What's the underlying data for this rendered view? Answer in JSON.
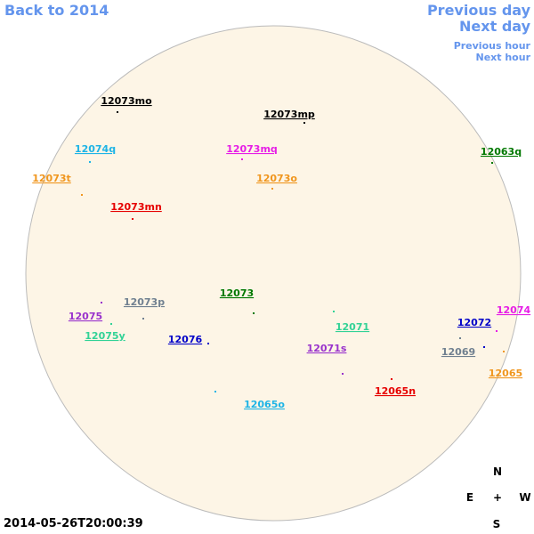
{
  "nav": {
    "back": "Back to 2014",
    "previous_day": "Previous day",
    "next_day": "Next day",
    "previous_hour": "Previous hour",
    "next_hour": "Next hour"
  },
  "regions": [
    {
      "label": "12073mo",
      "color": "#000000"
    },
    {
      "label": "12073mp",
      "color": "#000000"
    },
    {
      "label": "12074q",
      "color": "#1eb4e6"
    },
    {
      "label": "12073mq",
      "color": "#e61ee6"
    },
    {
      "label": "12063q",
      "color": "#007800"
    },
    {
      "label": "12073t",
      "color": "#f0961e"
    },
    {
      "label": "12073o",
      "color": "#f0961e"
    },
    {
      "label": "12073mn",
      "color": "#e60000"
    },
    {
      "label": "12073",
      "color": "#007800"
    },
    {
      "label": "12073p",
      "color": "#708090"
    },
    {
      "label": "12075",
      "color": "#9932cc"
    },
    {
      "label": "12071",
      "color": "#32d296"
    },
    {
      "label": "12072",
      "color": "#0000c8"
    },
    {
      "label": "12074",
      "color": "#e61ee6"
    },
    {
      "label": "12075y",
      "color": "#32d296"
    },
    {
      "label": "12076",
      "color": "#0000c8"
    },
    {
      "label": "12071s",
      "color": "#9932cc"
    },
    {
      "label": "12069",
      "color": "#708090"
    },
    {
      "label": "12065",
      "color": "#f0961e"
    },
    {
      "label": "12065n",
      "color": "#e60000"
    },
    {
      "label": "12065o",
      "color": "#1eb4e6"
    }
  ],
  "compass": {
    "north": "N",
    "east": "E",
    "center": "+",
    "west": "W",
    "south": "S"
  },
  "timestamp": "2014-05-26T20:00:39"
}
